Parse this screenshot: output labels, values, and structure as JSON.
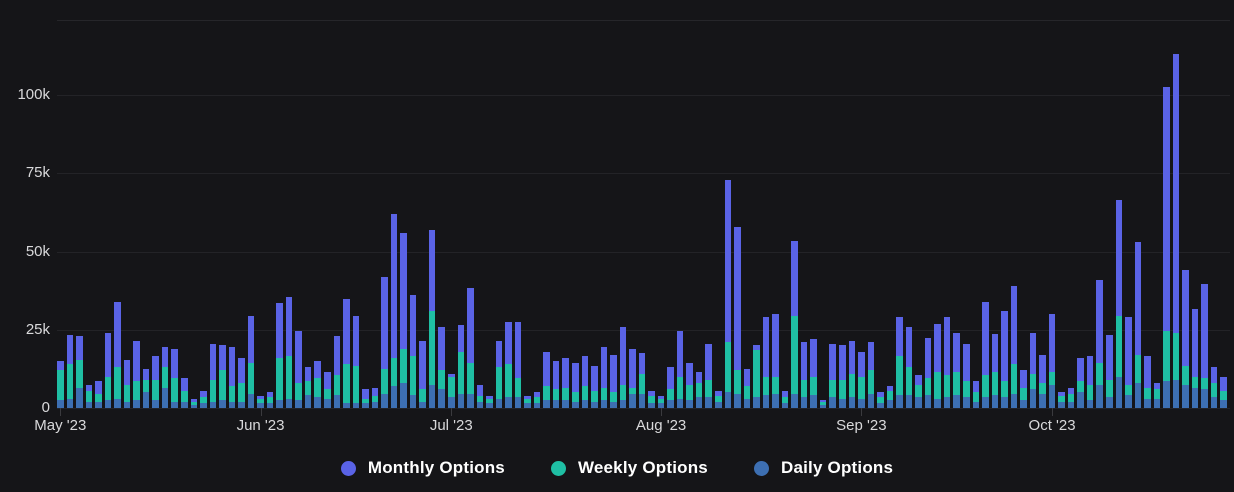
{
  "colors": {
    "background": "#151518",
    "gridline": "#232327",
    "axis_text": "#d9d9db",
    "legend_text": "#ffffff",
    "monthly": "#5a63e6",
    "weekly": "#1fbfa4",
    "daily": "#3d6fb2"
  },
  "legend": {
    "items": [
      {
        "label": "Monthly Options",
        "color": "#5a63e6"
      },
      {
        "label": "Weekly Options",
        "color": "#1fbfa4"
      },
      {
        "label": "Daily Options",
        "color": "#3d6fb2"
      }
    ]
  },
  "chart_data": {
    "type": "bar",
    "stacked": true,
    "unit": "thousands of contracts",
    "ylabel": "",
    "xlabel": "",
    "grid": "horizontal",
    "legend_position": "bottom-center",
    "y_axis": {
      "max_k": 124,
      "ticks": [
        {
          "label": "100k",
          "value_k": 100
        },
        {
          "label": "75k",
          "value_k": 75
        },
        {
          "label": "50k",
          "value_k": 50
        },
        {
          "label": "25k",
          "value_k": 25
        },
        {
          "label": "0",
          "value_k": 0
        }
      ]
    },
    "x_axis": {
      "ticks": [
        {
          "label": "May '23",
          "index": 0
        },
        {
          "label": "Jun '23",
          "index": 21
        },
        {
          "label": "Jul '23",
          "index": 41
        },
        {
          "label": "Aug '23",
          "index": 63
        },
        {
          "label": "Sep '23",
          "index": 84
        },
        {
          "label": "Oct '23",
          "index": 104
        }
      ]
    },
    "series": [
      {
        "name": "Daily Options",
        "color": "#3d6fb2",
        "values_k": [
          2.5,
          3,
          6.5,
          2,
          2,
          2.5,
          3,
          2,
          2.5,
          5,
          2.5,
          6.5,
          2,
          2,
          1,
          1.5,
          2,
          2.5,
          2,
          2,
          4.5,
          1.5,
          1.5,
          2.5,
          3,
          2.5,
          4,
          3.5,
          3,
          4,
          1.5,
          1.5,
          1.5,
          2,
          4.5,
          7,
          8,
          4,
          2,
          7.5,
          6,
          3.5,
          4.5,
          4.5,
          2,
          1.5,
          3,
          3.5,
          3.5,
          1.5,
          1.5,
          2.5,
          2.5,
          2.5,
          2,
          2.5,
          2,
          2.5,
          2,
          2.5,
          4.5,
          4.5,
          1.5,
          1.5,
          2.5,
          3,
          2.5,
          3.5,
          3.5,
          2,
          5,
          4.5,
          3,
          3.5,
          4,
          4.5,
          1.5,
          4.5,
          3.5,
          4,
          1,
          3.5,
          3,
          3.5,
          3,
          4.5,
          1.5,
          2.5,
          4,
          4,
          3.5,
          4,
          3,
          3.5,
          4,
          3.5,
          2,
          3.5,
          4,
          3.5,
          4.5,
          2.5,
          6,
          4.5,
          7.5,
          2,
          2,
          5,
          2.5,
          7.5,
          3.5,
          10,
          4,
          8,
          3,
          3,
          8.5,
          9,
          7.5,
          6.5,
          6,
          3.5,
          2.5
        ]
      },
      {
        "name": "Weekly Options",
        "color": "#1fbfa4",
        "values_k": [
          9.5,
          11,
          9,
          3.5,
          2.5,
          7.5,
          10,
          5.5,
          6,
          4,
          6.5,
          6.5,
          7.5,
          3.5,
          1,
          2,
          7,
          9.5,
          5,
          6,
          10,
          1.5,
          2,
          13.5,
          13.5,
          5.5,
          4.5,
          6,
          3,
          6.5,
          12.5,
          12,
          1.5,
          2,
          8,
          9,
          11,
          12.5,
          4,
          23.5,
          6,
          6.5,
          13.5,
          10,
          2,
          1.5,
          10,
          10.5,
          6,
          1.5,
          2,
          4.5,
          3.5,
          4,
          3,
          4.5,
          3.5,
          4,
          3,
          5,
          2,
          6.5,
          2.5,
          1.5,
          3.5,
          7,
          5,
          4.5,
          5.5,
          2,
          16,
          7.5,
          4,
          15,
          6,
          5.5,
          2,
          25,
          5.5,
          6,
          1,
          5.5,
          6,
          7.5,
          7,
          7.5,
          2,
          3,
          12.5,
          9,
          4,
          5.5,
          8.5,
          7,
          7.5,
          5,
          3,
          7,
          7.5,
          5,
          9.5,
          4,
          5,
          3.5,
          4,
          2,
          2.5,
          3.5,
          5,
          7,
          5.5,
          19.5,
          3.5,
          9,
          3.5,
          3,
          16,
          15,
          6,
          3.5,
          3.5,
          4.5,
          3
        ]
      },
      {
        "name": "Monthly Options",
        "color": "#5a63e6",
        "values_k": [
          3,
          9.5,
          7.5,
          2,
          4,
          14,
          21,
          8,
          13,
          3.5,
          7.5,
          6.5,
          9.5,
          4,
          1,
          2,
          11.5,
          8,
          12.5,
          8,
          15,
          1,
          1.5,
          17.5,
          19,
          16.5,
          4.5,
          5.5,
          5.5,
          12.5,
          21,
          16,
          3,
          2.5,
          29.5,
          46,
          37,
          19.5,
          15.5,
          26,
          14,
          1,
          8.5,
          24,
          3.5,
          1,
          8.5,
          13.5,
          18,
          1,
          1.5,
          11,
          9,
          9.5,
          9.5,
          9.5,
          8,
          13,
          12,
          18.5,
          12.5,
          6.5,
          1.5,
          1,
          7,
          14.5,
          7,
          3.5,
          11.5,
          1.5,
          52,
          46,
          5.5,
          1.5,
          19,
          20,
          2,
          24,
          12,
          12,
          0.5,
          11.5,
          11,
          10.5,
          8,
          9,
          1.5,
          1.5,
          12.5,
          13,
          3,
          13,
          15.5,
          18.5,
          12.5,
          12,
          3.5,
          23.5,
          12,
          22.5,
          25,
          5.5,
          13,
          9,
          18.5,
          1,
          2,
          7.5,
          9,
          26.5,
          14.5,
          37,
          21.5,
          36,
          10,
          2,
          78,
          89,
          30.5,
          21.5,
          30,
          5,
          4.5
        ]
      }
    ]
  }
}
